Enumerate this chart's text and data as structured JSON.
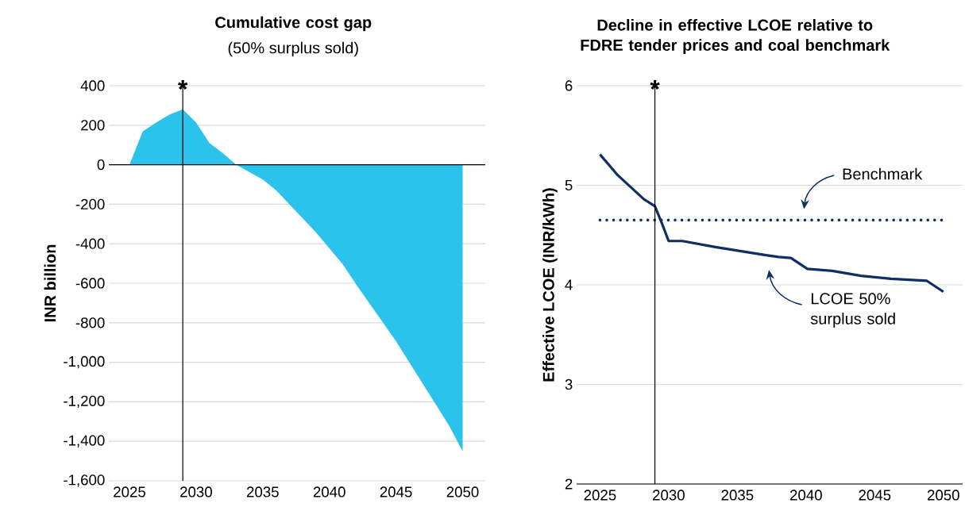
{
  "chart_data": [
    {
      "type": "area",
      "title": "Cumulative cost gap",
      "subtitle": "(50% surplus sold)",
      "ylabel": "INR billion",
      "x": [
        2025,
        2026,
        2027,
        2028,
        2029,
        2030,
        2031,
        2032,
        2033,
        2035,
        2036,
        2039,
        2041,
        2042,
        2045,
        2048,
        2049,
        2050
      ],
      "values": [
        0,
        169,
        213,
        253,
        280,
        213,
        110,
        59,
        0,
        -75,
        -129,
        -343,
        -504,
        -605,
        -893,
        -1215,
        -1323,
        -1450
      ],
      "color": "#2bc3eb",
      "xlim": [
        2023.45,
        2051.7
      ],
      "xticks": [
        2025,
        2030,
        2035,
        2040,
        2045,
        2050
      ],
      "ylim": [
        -1600,
        400
      ],
      "yticks": [
        {
          "value": -1600,
          "label": "-1,600"
        },
        {
          "value": -1400,
          "label": "-1,400"
        },
        {
          "value": -1200,
          "label": "-1,200"
        },
        {
          "value": -1000,
          "label": "-1,000"
        },
        {
          "value": -800,
          "label": "-800"
        },
        {
          "value": -600,
          "label": "-600"
        },
        {
          "value": -400,
          "label": "-400"
        },
        {
          "value": -200,
          "label": "-200"
        },
        0,
        200,
        400
      ],
      "grid": "y",
      "ref_lines": [
        {
          "axis": "x",
          "value": 2029,
          "label": "*",
          "color": "#000000"
        },
        {
          "axis": "y",
          "value": 0,
          "color": "#000000"
        }
      ]
    },
    {
      "type": "line",
      "title": "Decline in effective LCOE relative to FDRE tender prices and coal benchmark",
      "ylabel": "Effective LCOE (INR/kWh)",
      "series": [
        {
          "name": "LCOE 50% surplus sold",
          "color": "#0d2f63",
          "x": [
            2025,
            2026.3,
            2028.2,
            2029,
            2029.5,
            2030,
            2031,
            2033.4,
            2037,
            2038,
            2038.9,
            2040.1,
            2041.9,
            2044,
            2046.2,
            2048.8,
            2050
          ],
          "values": [
            5.31,
            5.1,
            4.86,
            4.79,
            4.62,
            4.44,
            4.44,
            4.38,
            4.3,
            4.28,
            4.27,
            4.16,
            4.14,
            4.09,
            4.06,
            4.04,
            3.93
          ]
        },
        {
          "name": "Benchmark",
          "color": "#0d2f63",
          "x": [
            2025,
            2050
          ],
          "values": [
            4.65,
            4.65
          ],
          "line_style": "dotted"
        }
      ],
      "xlim": [
        2023.3,
        2051.4
      ],
      "xticks": [
        2025,
        2030,
        2035,
        2040,
        2045,
        2050
      ],
      "ylim": [
        2,
        6
      ],
      "yticks": [
        2,
        3,
        4,
        5,
        6
      ],
      "grid": "y",
      "ref_lines": [
        {
          "axis": "x",
          "value": 2029,
          "label": "*",
          "color": "#000000"
        }
      ]
    }
  ]
}
